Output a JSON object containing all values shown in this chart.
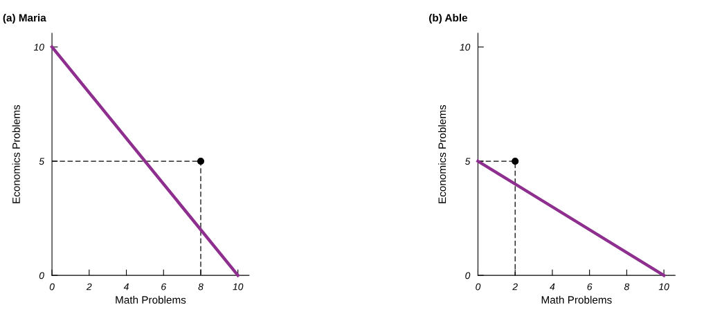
{
  "chart_data": [
    {
      "type": "line",
      "title": "(a) Maria",
      "xlabel": "Math Problems",
      "ylabel": "Economics Problems",
      "xlim": [
        0,
        10.6
      ],
      "ylim": [
        0,
        10.6
      ],
      "xticks": [
        0,
        2,
        4,
        6,
        8,
        10
      ],
      "yticks": [
        0,
        5,
        10
      ],
      "series": [
        {
          "color": "#8e2f8f",
          "x": [
            0,
            10
          ],
          "values": [
            10,
            0
          ],
          "line_style": "solid"
        },
        {
          "color": "#000000",
          "x": [
            0,
            8,
            8
          ],
          "values": [
            5,
            5,
            0
          ],
          "line_style": "dashed"
        },
        {
          "type": "scatter",
          "color": "#000000",
          "x": [
            8
          ],
          "values": [
            5
          ],
          "marker": "circle"
        }
      ]
    },
    {
      "type": "line",
      "title": "(b) Able",
      "xlabel": "Math Problems",
      "ylabel": "Economics Problems",
      "xlim": [
        0,
        10.6
      ],
      "ylim": [
        0,
        10.6
      ],
      "xticks": [
        0,
        2,
        4,
        6,
        8,
        10
      ],
      "yticks": [
        0,
        5,
        10
      ],
      "series": [
        {
          "color": "#8e2f8f",
          "x": [
            0,
            10
          ],
          "values": [
            5,
            0
          ],
          "line_style": "solid"
        },
        {
          "color": "#000000",
          "x": [
            0,
            2,
            2
          ],
          "values": [
            5,
            5,
            0
          ],
          "line_style": "dashed"
        },
        {
          "type": "scatter",
          "color": "#000000",
          "x": [
            2
          ],
          "values": [
            5
          ],
          "marker": "circle"
        }
      ]
    }
  ]
}
